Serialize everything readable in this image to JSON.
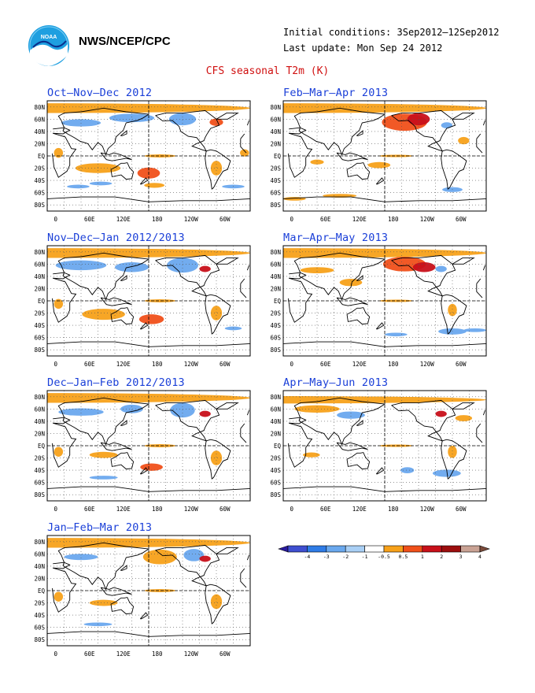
{
  "header": {
    "organization": "NWS/NCEP/CPC",
    "initial_conditions": "Initial conditions: 3Sep2012–12Sep2012",
    "last_update": "Last update: Mon Sep 24 2012",
    "product_title": "CFS seasonal T2m (K)",
    "logo_text": "NOAA"
  },
  "panels": [
    {
      "id": "ond",
      "title": "Oct–Nov–Dec 2012"
    },
    {
      "id": "feb",
      "title": "Feb–Mar–Apr 2013"
    },
    {
      "id": "ndj",
      "title": "Nov–Dec–Jan 2012/2013"
    },
    {
      "id": "mam",
      "title": "Mar–Apr–May 2013"
    },
    {
      "id": "djf",
      "title": "Dec–Jan–Feb 2012/2013"
    },
    {
      "id": "amj",
      "title": "Apr–May–Jun 2013"
    },
    {
      "id": "jfm",
      "title": "Jan–Feb–Mar 2013"
    }
  ],
  "axes": {
    "lat_labels": [
      "80N",
      "60N",
      "40N",
      "20N",
      "EQ",
      "20S",
      "40S",
      "60S",
      "80S"
    ],
    "lon_labels": [
      "0",
      "60E",
      "120E",
      "180",
      "120W",
      "60W",
      "0"
    ]
  },
  "legend": {
    "ticks": [
      "-4",
      "-3",
      "-2",
      "-1",
      "-0.5",
      "0.5",
      "1",
      "2",
      "3",
      "4"
    ],
    "colors": [
      "#2a1a9e",
      "#3f4fd0",
      "#2f7ce6",
      "#6aa8ee",
      "#a9cff5",
      "#ffffff",
      "#f7a11a",
      "#f0501a",
      "#c8101a",
      "#9c0e0e",
      "#c9a294",
      "#7a4a3a"
    ]
  }
}
